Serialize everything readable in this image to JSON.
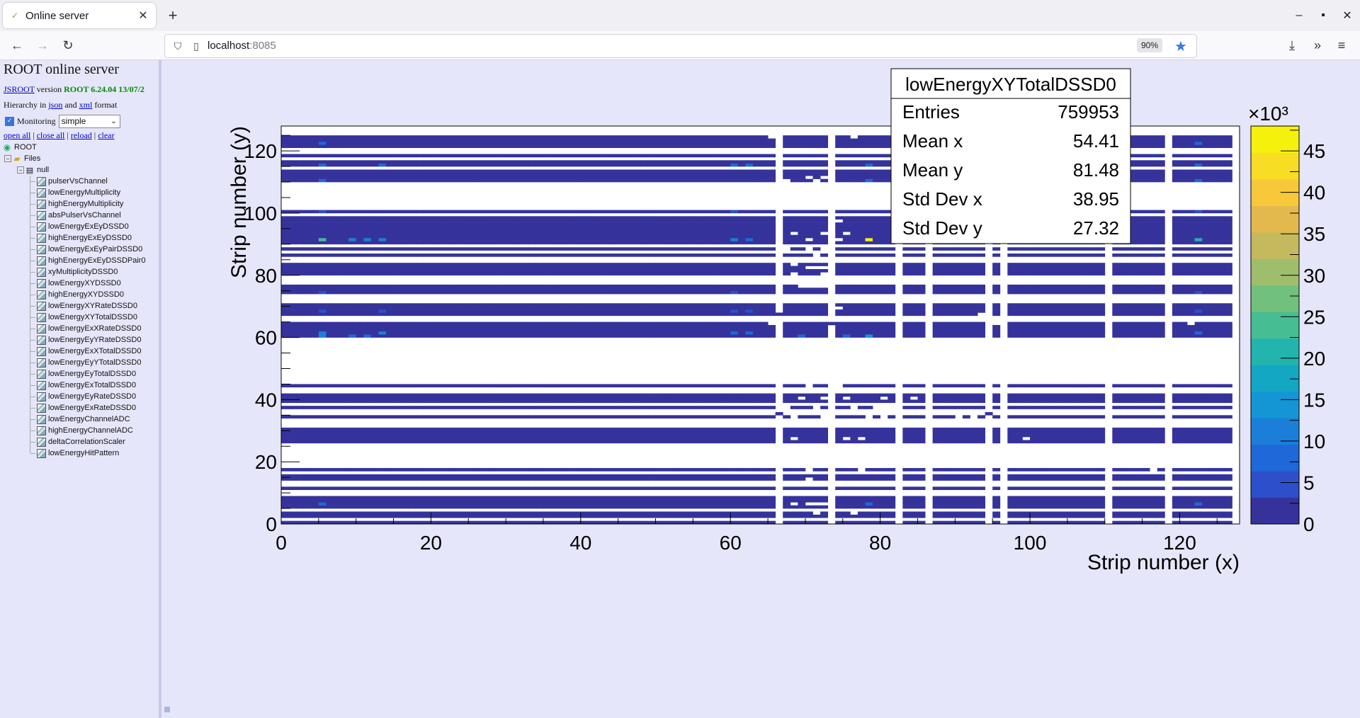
{
  "browser": {
    "tab_title": "Online server",
    "new_tab": "+",
    "url_host": "localhost",
    "url_port": ":8085",
    "zoom": "90%"
  },
  "sidebar": {
    "server_title": "ROOT online server",
    "jsroot_link": "JSROOT",
    "version_word": "version",
    "root_version": "ROOT 6.24.04 13/07/2",
    "hierarchy_prefix": "Hierarchy in",
    "json_link": "json",
    "and_word": "and",
    "xml_link": "xml",
    "format_word": "format",
    "monitoring_label": "Monitoring",
    "monitoring_checked": true,
    "monitoring_select": "simple",
    "open_all": "open all",
    "close_all": "close all",
    "reload": "reload",
    "clear": "clear",
    "sep": "|",
    "tree_root": "ROOT",
    "tree_files": "Files",
    "tree_null": "null",
    "items": [
      "pulserVsChannel",
      "lowEnergyMultiplicity",
      "highEnergyMultiplicity",
      "absPulserVsChannel",
      "lowEnergyExEyDSSD0",
      "highEnergyExEyDSSD0",
      "lowEnergyExEyPairDSSD0",
      "highEnergyExEyDSSDPair0",
      "xyMultiplicityDSSD0",
      "lowEnergyXYDSSD0",
      "highEnergyXYDSSD0",
      "lowEnergyXYRateDSSD0",
      "lowEnergyXYTotalDSSD0",
      "lowEnergyExXRateDSSD0",
      "lowEnergyEyYRateDSSD0",
      "lowEnergyExXTotalDSSD0",
      "lowEnergyEyYTotalDSSD0",
      "lowEnergyEyTotalDSSD0",
      "lowEnergyExTotalDSSD0",
      "lowEnergyEyRateDSSD0",
      "lowEnergyExRateDSSD0",
      "lowEnergyChannelADC",
      "highEnergyChannelADC",
      "deltaCorrelationScaler",
      "lowEnergyHitPattern"
    ],
    "item_icons": [
      "h2",
      "h1",
      "h1",
      "h2",
      "h2",
      "h2",
      "h2",
      "h2",
      "h2",
      "h2",
      "h2",
      "h2",
      "h2",
      "h2",
      "h2",
      "h2",
      "h2",
      "h2",
      "h2",
      "h2",
      "h2",
      "h2",
      "h1",
      "h1",
      "h1"
    ]
  },
  "stats": {
    "title": "lowEnergyXYTotalDSSD0",
    "rows": [
      {
        "label": "Entries",
        "value": "759953"
      },
      {
        "label": "Mean x",
        "value": "54.41"
      },
      {
        "label": "Mean y",
        "value": "81.48"
      },
      {
        "label": "Std Dev x",
        "value": "38.95"
      },
      {
        "label": "Std Dev y",
        "value": "27.32"
      }
    ]
  },
  "chart_data": {
    "type": "heatmap",
    "title": "lowEnergyXYTotalDSSD0",
    "xlabel": "Strip number (x)",
    "ylabel": "Strip number (y)",
    "xlim": [
      0,
      128
    ],
    "ylim": [
      0,
      128
    ],
    "x_ticks": [
      0,
      20,
      40,
      60,
      80,
      100,
      120
    ],
    "y_ticks": [
      0,
      20,
      40,
      60,
      80,
      100,
      120
    ],
    "z_exponent": "×10³",
    "z_ticks": [
      0,
      5,
      10,
      15,
      20,
      25,
      30,
      35,
      40,
      45
    ],
    "z_max": 48,
    "base_value": 2,
    "empty_x_strips": [
      66,
      73,
      82,
      86,
      94,
      96,
      110,
      118,
      127
    ],
    "empty_y_strips": [
      1,
      4,
      9,
      10,
      12,
      13,
      16,
      18,
      19,
      20,
      21,
      22,
      23,
      24,
      25,
      31,
      32,
      33,
      35,
      36,
      38,
      42,
      43,
      45,
      46,
      47,
      48,
      49,
      50,
      51,
      52,
      53,
      54,
      55,
      56,
      57,
      58,
      59,
      65,
      66,
      71,
      72,
      73,
      77,
      78,
      79,
      84,
      85,
      87,
      89,
      99,
      101,
      102,
      103,
      104,
      105,
      106,
      107,
      108,
      109,
      114,
      117,
      119,
      120,
      125,
      126,
      127
    ],
    "hot_spots": [
      {
        "x": 78,
        "y": 91,
        "v": 46
      },
      {
        "x": 5,
        "y": 91,
        "v": 23
      },
      {
        "x": 122,
        "y": 91,
        "v": 20
      },
      {
        "x": 78,
        "y": 60,
        "v": 14
      },
      {
        "x": 5,
        "y": 61,
        "v": 12
      },
      {
        "x": 5,
        "y": 60,
        "v": 12
      },
      {
        "x": 13,
        "y": 61,
        "v": 10
      },
      {
        "x": 9,
        "y": 91,
        "v": 10
      },
      {
        "x": 11,
        "y": 91,
        "v": 10
      },
      {
        "x": 13,
        "y": 91,
        "v": 10
      },
      {
        "x": 60,
        "y": 91,
        "v": 10
      },
      {
        "x": 62,
        "y": 91,
        "v": 9
      },
      {
        "x": 60,
        "y": 61,
        "v": 9
      },
      {
        "x": 62,
        "y": 61,
        "v": 9
      },
      {
        "x": 122,
        "y": 61,
        "v": 9
      },
      {
        "x": 5,
        "y": 110,
        "v": 9
      },
      {
        "x": 5,
        "y": 122,
        "v": 9
      },
      {
        "x": 122,
        "y": 122,
        "v": 8
      },
      {
        "x": 122,
        "y": 110,
        "v": 9
      },
      {
        "x": 78,
        "y": 110,
        "v": 8
      },
      {
        "x": 5,
        "y": 6,
        "v": 8
      },
      {
        "x": 78,
        "y": 6,
        "v": 7
      },
      {
        "x": 122,
        "y": 6,
        "v": 7
      },
      {
        "x": 5,
        "y": 115,
        "v": 7
      },
      {
        "x": 13,
        "y": 115,
        "v": 7
      },
      {
        "x": 60,
        "y": 115,
        "v": 7
      },
      {
        "x": 62,
        "y": 115,
        "v": 7
      },
      {
        "x": 78,
        "y": 115,
        "v": 7
      },
      {
        "x": 122,
        "y": 115,
        "v": 7
      },
      {
        "x": 5,
        "y": 100,
        "v": 6
      },
      {
        "x": 60,
        "y": 100,
        "v": 6
      },
      {
        "x": 122,
        "y": 100,
        "v": 6
      },
      {
        "x": 5,
        "y": 74,
        "v": 6
      },
      {
        "x": 60,
        "y": 74,
        "v": 6
      },
      {
        "x": 122,
        "y": 74,
        "v": 6
      },
      {
        "x": 5,
        "y": 68,
        "v": 6
      },
      {
        "x": 13,
        "y": 68,
        "v": 6
      },
      {
        "x": 60,
        "y": 68,
        "v": 6
      },
      {
        "x": 62,
        "y": 68,
        "v": 6
      },
      {
        "x": 122,
        "y": 68,
        "v": 6
      },
      {
        "x": 9,
        "y": 60,
        "v": 7
      },
      {
        "x": 11,
        "y": 60,
        "v": 7
      },
      {
        "x": 69,
        "y": 60,
        "v": 7
      },
      {
        "x": 75,
        "y": 60,
        "v": 7
      }
    ],
    "holes": [
      {
        "x": 65,
        "y": 124
      },
      {
        "x": 76,
        "y": 124
      },
      {
        "x": 70,
        "y": 111
      },
      {
        "x": 72,
        "y": 111
      },
      {
        "x": 71,
        "y": 110
      },
      {
        "x": 67,
        "y": 110
      },
      {
        "x": 74,
        "y": 97
      },
      {
        "x": 90,
        "y": 96
      },
      {
        "x": 68,
        "y": 93
      },
      {
        "x": 72,
        "y": 93
      },
      {
        "x": 75,
        "y": 93
      },
      {
        "x": 87,
        "y": 93
      },
      {
        "x": 91,
        "y": 93
      },
      {
        "x": 70,
        "y": 91
      },
      {
        "x": 74,
        "y": 91
      },
      {
        "x": 78,
        "y": 91
      },
      {
        "x": 67,
        "y": 88
      },
      {
        "x": 70,
        "y": 88
      },
      {
        "x": 72,
        "y": 88
      },
      {
        "x": 71,
        "y": 86
      },
      {
        "x": 68,
        "y": 83
      },
      {
        "x": 66,
        "y": 82
      },
      {
        "x": 70,
        "y": 82
      },
      {
        "x": 71,
        "y": 82
      },
      {
        "x": 72,
        "y": 82
      },
      {
        "x": 68,
        "y": 80
      },
      {
        "x": 72,
        "y": 80
      },
      {
        "x": 69,
        "y": 76
      },
      {
        "x": 70,
        "y": 76
      },
      {
        "x": 71,
        "y": 76
      },
      {
        "x": 72,
        "y": 76
      },
      {
        "x": 74,
        "y": 69
      },
      {
        "x": 93,
        "y": 67
      },
      {
        "x": 65,
        "y": 64
      },
      {
        "x": 95,
        "y": 64
      },
      {
        "x": 121,
        "y": 64
      },
      {
        "x": 70,
        "y": 44
      },
      {
        "x": 74,
        "y": 44
      },
      {
        "x": 58,
        "y": 42
      },
      {
        "x": 69,
        "y": 40
      },
      {
        "x": 72,
        "y": 40
      },
      {
        "x": 75,
        "y": 40
      },
      {
        "x": 80,
        "y": 40
      },
      {
        "x": 84,
        "y": 40
      },
      {
        "x": 67,
        "y": 37
      },
      {
        "x": 71,
        "y": 37
      },
      {
        "x": 76,
        "y": 37
      },
      {
        "x": 79,
        "y": 37
      },
      {
        "x": 80,
        "y": 37
      },
      {
        "x": 81,
        "y": 37
      },
      {
        "x": 90,
        "y": 34
      },
      {
        "x": 92,
        "y": 34
      },
      {
        "x": 68,
        "y": 34
      },
      {
        "x": 72,
        "y": 34
      },
      {
        "x": 78,
        "y": 34
      },
      {
        "x": 80,
        "y": 34
      },
      {
        "x": 75,
        "y": 27
      },
      {
        "x": 77,
        "y": 27
      },
      {
        "x": 99,
        "y": 27
      },
      {
        "x": 68,
        "y": 27
      },
      {
        "x": 70,
        "y": 17
      },
      {
        "x": 77,
        "y": 17
      },
      {
        "x": 116,
        "y": 17
      },
      {
        "x": 70,
        "y": 14
      },
      {
        "x": 102,
        "y": 13
      },
      {
        "x": 68,
        "y": 6
      },
      {
        "x": 70,
        "y": 6
      },
      {
        "x": 71,
        "y": 6
      },
      {
        "x": 72,
        "y": 6
      },
      {
        "x": 71,
        "y": 3
      },
      {
        "x": 76,
        "y": 3
      }
    ],
    "extras": [
      {
        "x": 44,
        "y": 41
      },
      {
        "x": 32,
        "y": 14
      },
      {
        "x": 65,
        "y": 61
      },
      {
        "x": 65,
        "y": 62
      },
      {
        "x": 66,
        "y": 67
      },
      {
        "x": 73,
        "y": 64
      },
      {
        "x": 94,
        "y": 35
      },
      {
        "x": 66,
        "y": 35
      }
    ]
  }
}
